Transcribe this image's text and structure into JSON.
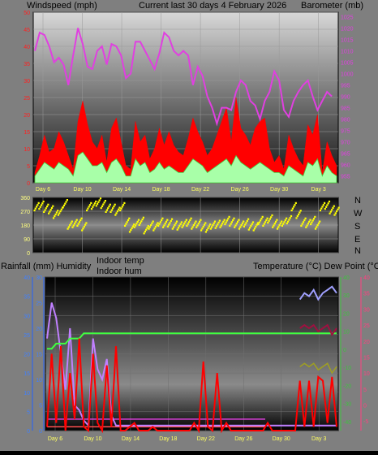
{
  "header": {
    "title": "Current last 30 days 4 February 2026",
    "left_label": "Windspeed (mph)",
    "right_label": "Barometer (mb)"
  },
  "middle": {
    "compass": [
      "N",
      "W",
      "S",
      "E",
      "N"
    ]
  },
  "lower": {
    "label_rain_hum": "Rainfall (mm)  Humidity",
    "label_indoor_temp": "Indoor temp",
    "label_indoor_hum": "Indoor hum",
    "label_temp_dew": "Temperature (°C) Dew Point (°C)"
  },
  "colors": {
    "wind_gust": "#ff0000",
    "wind_avg": "#a8ffa8",
    "barometer": "#e040e0",
    "wind_dir": "#ffff00",
    "rainfall": "#ff0000",
    "humidity": "#c080ff",
    "indoor_temp": "#40ff40",
    "temperature": "#a0a0ff",
    "dew_point": "#a01040",
    "rain_axis": "#2060ff",
    "temp_axis": "#ff4080",
    "dew_axis": "#40c040"
  },
  "chart_data": [
    {
      "type": "area",
      "name": "wind_barometer",
      "x_ticks": [
        "Day 6",
        "Day 10",
        "Day 14",
        "Day 18",
        "Day 22",
        "Day 26",
        "Day 30",
        "Day 3"
      ],
      "y_left": {
        "label": "Windspeed (mph)",
        "ticks": [
          0,
          5,
          10,
          15,
          20,
          25,
          30,
          35,
          40,
          45,
          50
        ],
        "range": [
          0,
          50
        ]
      },
      "y_right": {
        "label": "Barometer (mb)",
        "ticks": [
          955,
          960,
          965,
          970,
          975,
          980,
          985,
          990,
          995,
          1000,
          1005,
          1010,
          1015,
          1020,
          1025
        ],
        "range": [
          952,
          1027
        ]
      },
      "series": [
        {
          "type": "line",
          "axis": "right",
          "values": [
            1010,
            1018,
            1017,
            1012,
            1005,
            1007,
            1004,
            995,
            1008,
            1020,
            1013,
            1003,
            1002,
            1010,
            1012,
            1004,
            1013,
            1012,
            1008,
            998,
            1000,
            1014,
            1014,
            1010,
            1006,
            1002,
            1009,
            1018,
            1016,
            1010,
            1008,
            1010,
            1008,
            995,
            1003,
            999,
            990,
            985,
            978,
            985,
            985,
            984,
            992,
            997,
            995,
            988,
            986,
            980,
            988,
            992,
            1001,
            997,
            984,
            981,
            988,
            992,
            995,
            997,
            990,
            984,
            988,
            992,
            990
          ]
        },
        {
          "type": "area",
          "axis": "left",
          "values": [
            3,
            8,
            14,
            9,
            10,
            15,
            12,
            8,
            4,
            18,
            24,
            17,
            12,
            10,
            14,
            6,
            16,
            19,
            12,
            5,
            4,
            18,
            12,
            14,
            7,
            10,
            16,
            11,
            15,
            11,
            9,
            8,
            13,
            19,
            15,
            12,
            8,
            10,
            14,
            18,
            22,
            12,
            25,
            16,
            14,
            11,
            16,
            18,
            19,
            10,
            6,
            8,
            4,
            14,
            10,
            7,
            5,
            17,
            14,
            20,
            3,
            12,
            8,
            5
          ]
        },
        {
          "type": "area",
          "axis": "left",
          "values": [
            2,
            4,
            6,
            5,
            4,
            6,
            5,
            4,
            2,
            8,
            9,
            7,
            5,
            5,
            6,
            3,
            6,
            7,
            5,
            2,
            2,
            7,
            5,
            6,
            3,
            4,
            6,
            4,
            5,
            4,
            3,
            3,
            5,
            7,
            6,
            5,
            3,
            4,
            5,
            6,
            7,
            5,
            8,
            6,
            5,
            4,
            5,
            6,
            5,
            4,
            3,
            3,
            2,
            5,
            4,
            3,
            2,
            6,
            5,
            7,
            2,
            5,
            3,
            2
          ]
        }
      ]
    },
    {
      "type": "scatter",
      "name": "wind_direction",
      "y_ticks": [
        0,
        90,
        180,
        270,
        360
      ],
      "x_ticks": [
        "Day 6",
        "Day 10",
        "Day 14",
        "Day 18",
        "Day 22",
        "Day 26",
        "Day 30",
        "Day 3"
      ],
      "values": [
        300,
        310,
        290,
        280,
        250,
        270,
        320,
        180,
        190,
        200,
        170,
        300,
        310,
        330,
        315,
        290,
        290,
        270,
        300,
        200,
        160,
        190,
        205,
        150,
        180,
        170,
        200,
        190,
        195,
        180,
        175,
        190,
        200,
        180,
        190,
        170,
        160,
        180,
        185,
        190,
        210,
        200,
        190,
        180,
        195,
        175,
        170,
        210,
        200,
        220,
        190,
        180,
        200,
        215,
        300,
        250,
        200,
        190,
        210,
        180,
        300,
        310,
        280,
        270
      ]
    },
    {
      "type": "line",
      "name": "rain_humidity_temp",
      "x_ticks": [
        "Day 6",
        "Day 10",
        "Day 14",
        "Day 18",
        "Day 22",
        "Day 26",
        "Day 30",
        "Day 3"
      ],
      "y_rain": {
        "label": "Rainfall (mm)",
        "ticks": [
          0,
          5,
          10,
          15,
          20,
          25,
          30,
          35,
          40
        ],
        "range": [
          0,
          40
        ]
      },
      "y_hum": {
        "label": "Humidity",
        "ticks": [
          0,
          5,
          10,
          15,
          20,
          25,
          30
        ],
        "range": [
          0,
          30
        ]
      },
      "y_temp": {
        "label": "Temperature (°C)",
        "ticks": [
          -5,
          0,
          5,
          10,
          15,
          20,
          25,
          30,
          35,
          40
        ],
        "range": [
          -8,
          40
        ]
      },
      "y_dew": {
        "label": "Dew Point (°C)",
        "ticks": [
          -40,
          -30,
          -20,
          -10,
          0,
          10,
          20,
          30,
          40
        ],
        "range": [
          -45,
          40
        ]
      },
      "series": [
        {
          "name": "Rainfall (mm)",
          "axis": "rain",
          "values": [
            1,
            20,
            2,
            22,
            0,
            15,
            3,
            24,
            1,
            0,
            20,
            2,
            0,
            17,
            1,
            22,
            0,
            0,
            1,
            2,
            0,
            0,
            0,
            1,
            0,
            0,
            0,
            0,
            0,
            0,
            0,
            0,
            2,
            0,
            18,
            1,
            0,
            15,
            0,
            2,
            0,
            0,
            0,
            0,
            0,
            0,
            0,
            0,
            2,
            0,
            0,
            0,
            0,
            0,
            0,
            13,
            1,
            13,
            1,
            14,
            13,
            2,
            14,
            1
          ]
        },
        {
          "name": "Humidity",
          "axis": "hum",
          "values": [
            18,
            25,
            22,
            15,
            8,
            20,
            5,
            4,
            2,
            1,
            18,
            12,
            10,
            14,
            3,
            1,
            1,
            1,
            1,
            1,
            1,
            1,
            1,
            1,
            1,
            1,
            1,
            1,
            1,
            1,
            1,
            1,
            1,
            1,
            1,
            1,
            1,
            1,
            1,
            1,
            1,
            1,
            1,
            1,
            1,
            1,
            1,
            1,
            1,
            1,
            1,
            1,
            1,
            1,
            1,
            1,
            1,
            1,
            1,
            1,
            1,
            1,
            1,
            1
          ]
        },
        {
          "name": "Indoor temp",
          "axis": "hum",
          "values": [
            16,
            16,
            17,
            17,
            17,
            18,
            18,
            18,
            19,
            19,
            19,
            19,
            19,
            19,
            19,
            19,
            19,
            19,
            19,
            19,
            19,
            19,
            19,
            19,
            19,
            19,
            19,
            19,
            19,
            19,
            19,
            19,
            19,
            19,
            19,
            19,
            19,
            19,
            19,
            19,
            19,
            19,
            19,
            19,
            19,
            19,
            19,
            19,
            19,
            19,
            19,
            19,
            19,
            19,
            19,
            19,
            19,
            19,
            19,
            19,
            19,
            19,
            19,
            19
          ]
        },
        {
          "name": "Temperature (°C)",
          "axis": "temp",
          "values": [
            null,
            null,
            null,
            null,
            null,
            null,
            null,
            null,
            null,
            null,
            null,
            null,
            null,
            null,
            null,
            null,
            null,
            null,
            null,
            null,
            null,
            null,
            null,
            null,
            null,
            null,
            null,
            null,
            null,
            null,
            null,
            null,
            null,
            null,
            null,
            null,
            null,
            null,
            null,
            null,
            null,
            null,
            null,
            null,
            null,
            null,
            null,
            null,
            null,
            null,
            null,
            null,
            null,
            null,
            null,
            33,
            35,
            34,
            36,
            33,
            35,
            36,
            37,
            35
          ]
        },
        {
          "name": "Dew Point (°C)",
          "axis": "temp",
          "values": [
            null,
            null,
            null,
            null,
            null,
            null,
            null,
            null,
            null,
            null,
            null,
            null,
            null,
            null,
            null,
            null,
            null,
            null,
            null,
            null,
            null,
            null,
            null,
            null,
            null,
            null,
            null,
            null,
            null,
            null,
            null,
            null,
            null,
            null,
            null,
            null,
            null,
            null,
            null,
            null,
            null,
            null,
            null,
            null,
            null,
            null,
            null,
            null,
            null,
            null,
            null,
            null,
            null,
            null,
            null,
            24,
            25,
            24,
            25,
            23,
            24,
            25,
            22,
            24
          ]
        }
      ]
    }
  ]
}
